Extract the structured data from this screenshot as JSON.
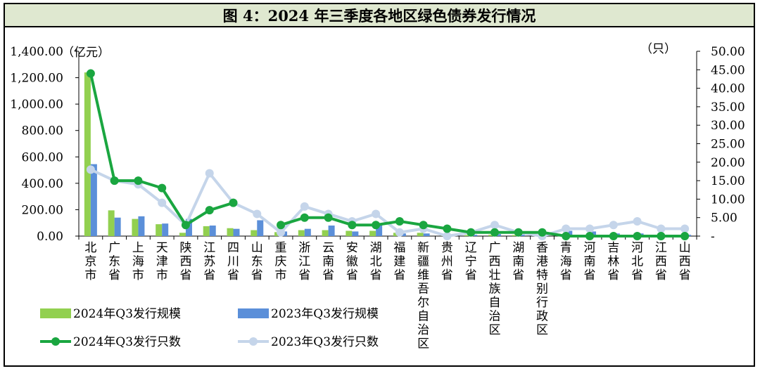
{
  "chart_data": {
    "type": "bar",
    "title": "图 4：2024 年三季度各地区绿色债券发行情况",
    "ylabel_left": "（亿元）",
    "ylabel_right": "（只）",
    "ylim_left": [
      0,
      1400
    ],
    "ylim_right": [
      0,
      50
    ],
    "yticks_left": [
      "0.00",
      "200.00",
      "400.00",
      "600.00",
      "800.00",
      "1,000.00",
      "1,200.00",
      "1,400.00"
    ],
    "yticks_right": [
      "-",
      "5.00",
      "10.00",
      "15.00",
      "20.00",
      "25.00",
      "30.00",
      "35.00",
      "40.00",
      "45.00",
      "50.00"
    ],
    "categories": [
      "北京市",
      "广东省",
      "上海市",
      "天津市",
      "陕西省",
      "江苏省",
      "四川省",
      "山东省",
      "重庆市",
      "浙江省",
      "云南省",
      "安徽省",
      "湖北省",
      "福建省",
      "新疆维吾尔自治区",
      "贵州省",
      "辽宁省",
      "广西壮族自治区",
      "湖南省",
      "香港特别行政区",
      "青海省",
      "河南省",
      "吉林省",
      "河北省",
      "江西省",
      "山西省"
    ],
    "series": [
      {
        "name": "2024年Q3发行规模",
        "kind": "bar",
        "axis": "left",
        "color": "#92d050",
        "values": [
          1240,
          195,
          130,
          90,
          25,
          75,
          60,
          45,
          30,
          45,
          45,
          40,
          40,
          25,
          25,
          8,
          8,
          10,
          8,
          5,
          5,
          5,
          2,
          3,
          2,
          2
        ]
      },
      {
        "name": "2023年Q3发行规模",
        "kind": "bar",
        "axis": "left",
        "color": "#5b8fd9",
        "values": [
          545,
          140,
          150,
          95,
          130,
          80,
          55,
          120,
          35,
          55,
          80,
          35,
          95,
          20,
          20,
          5,
          10,
          15,
          10,
          5,
          40,
          35,
          20,
          20,
          10,
          10
        ]
      },
      {
        "name": "2024年Q3发行只数",
        "kind": "line",
        "axis": "right",
        "color": "#1aa640",
        "values": [
          44,
          15,
          15,
          13,
          3,
          7,
          9,
          null,
          3,
          5,
          5,
          3,
          3,
          4,
          3,
          2,
          1,
          1,
          1,
          1,
          0,
          0,
          0,
          0,
          0,
          0
        ]
      },
      {
        "name": "2023年Q3发行只数",
        "kind": "line",
        "axis": "right",
        "color": "#c5d5ea",
        "values": [
          18,
          15,
          14,
          9,
          3,
          17,
          9,
          6,
          1,
          8,
          6,
          4,
          6,
          1,
          2,
          0,
          1,
          3,
          1,
          0,
          2,
          2,
          3,
          4,
          2,
          2
        ]
      }
    ]
  }
}
